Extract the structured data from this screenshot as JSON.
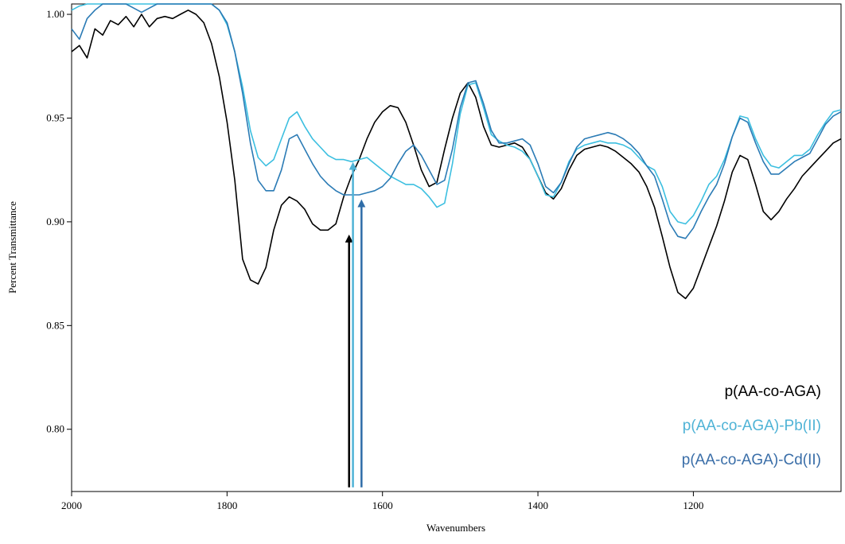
{
  "chart_data": {
    "type": "line",
    "title": "",
    "xlabel": "Wavenumbers",
    "ylabel": "Percent Transmittance",
    "xlim": [
      2000,
      1010
    ],
    "ylim": [
      0.77,
      1.005
    ],
    "x_reversed": true,
    "grid": false,
    "legend_placement": "bottom-right",
    "x_ticks": [
      2000,
      1800,
      1600,
      1400,
      1200
    ],
    "x_tick_labels": [
      "2000",
      "1800",
      "1600",
      "1400",
      "1200"
    ],
    "y_ticks": [
      1.0,
      0.95,
      0.9,
      0.85,
      0.8
    ],
    "y_tick_labels": [
      "1.00",
      "0.95",
      "0.90",
      "0.85",
      "0.80"
    ],
    "series": [
      {
        "name": "p(AA-co-AGA)",
        "color": "#000000",
        "x": [
          2000,
          1990,
          1980,
          1970,
          1960,
          1950,
          1940,
          1930,
          1920,
          1910,
          1900,
          1890,
          1880,
          1870,
          1860,
          1850,
          1840,
          1830,
          1820,
          1810,
          1800,
          1790,
          1780,
          1770,
          1760,
          1750,
          1740,
          1730,
          1720,
          1710,
          1700,
          1690,
          1680,
          1670,
          1660,
          1650,
          1640,
          1630,
          1620,
          1610,
          1600,
          1590,
          1580,
          1570,
          1560,
          1550,
          1540,
          1530,
          1520,
          1510,
          1500,
          1490,
          1480,
          1470,
          1460,
          1450,
          1440,
          1430,
          1420,
          1410,
          1400,
          1390,
          1380,
          1370,
          1360,
          1350,
          1340,
          1330,
          1320,
          1310,
          1300,
          1290,
          1280,
          1270,
          1260,
          1250,
          1240,
          1230,
          1220,
          1210,
          1200,
          1190,
          1180,
          1170,
          1160,
          1150,
          1140,
          1130,
          1120,
          1110,
          1100,
          1090,
          1080,
          1070,
          1060,
          1050,
          1040,
          1030,
          1020,
          1010
        ],
        "values": [
          0.982,
          0.985,
          0.979,
          0.993,
          0.99,
          0.997,
          0.995,
          0.999,
          0.994,
          1.0,
          0.994,
          0.998,
          0.999,
          0.998,
          1.0,
          1.002,
          1.0,
          0.996,
          0.986,
          0.97,
          0.948,
          0.92,
          0.882,
          0.872,
          0.87,
          0.878,
          0.896,
          0.908,
          0.912,
          0.91,
          0.906,
          0.899,
          0.896,
          0.896,
          0.899,
          0.912,
          0.922,
          0.93,
          0.94,
          0.948,
          0.953,
          0.956,
          0.955,
          0.948,
          0.937,
          0.925,
          0.917,
          0.919,
          0.935,
          0.95,
          0.962,
          0.967,
          0.96,
          0.946,
          0.937,
          0.936,
          0.937,
          0.938,
          0.936,
          0.93,
          0.922,
          0.914,
          0.911,
          0.916,
          0.925,
          0.932,
          0.935,
          0.936,
          0.937,
          0.936,
          0.934,
          0.931,
          0.928,
          0.924,
          0.917,
          0.907,
          0.893,
          0.878,
          0.866,
          0.863,
          0.868,
          0.878,
          0.888,
          0.898,
          0.91,
          0.924,
          0.932,
          0.93,
          0.918,
          0.905,
          0.901,
          0.905,
          0.911,
          0.916,
          0.922,
          0.926,
          0.93,
          0.934,
          0.938,
          0.94
        ]
      },
      {
        "name": "p(AA-co-AGA)-Pb(II)",
        "color": "#3cbfe0",
        "x": [
          2000,
          1990,
          1980,
          1970,
          1960,
          1950,
          1940,
          1930,
          1920,
          1910,
          1900,
          1890,
          1880,
          1870,
          1860,
          1850,
          1840,
          1830,
          1820,
          1810,
          1800,
          1790,
          1780,
          1770,
          1760,
          1750,
          1740,
          1730,
          1720,
          1710,
          1700,
          1690,
          1680,
          1670,
          1660,
          1650,
          1640,
          1630,
          1620,
          1610,
          1600,
          1590,
          1580,
          1570,
          1560,
          1550,
          1540,
          1530,
          1520,
          1510,
          1500,
          1490,
          1480,
          1470,
          1460,
          1450,
          1440,
          1430,
          1420,
          1410,
          1400,
          1390,
          1380,
          1370,
          1360,
          1350,
          1340,
          1330,
          1320,
          1310,
          1300,
          1290,
          1280,
          1270,
          1260,
          1250,
          1240,
          1230,
          1220,
          1210,
          1200,
          1190,
          1180,
          1170,
          1160,
          1150,
          1140,
          1130,
          1120,
          1110,
          1100,
          1090,
          1080,
          1070,
          1060,
          1050,
          1040,
          1030,
          1020,
          1010
        ],
        "values": [
          1.002,
          1.004,
          1.005,
          1.006,
          1.007,
          1.007,
          1.007,
          1.006,
          1.007,
          1.006,
          1.007,
          1.007,
          1.008,
          1.007,
          1.007,
          1.007,
          1.007,
          1.008,
          1.006,
          1.002,
          0.995,
          0.982,
          0.965,
          0.944,
          0.931,
          0.927,
          0.93,
          0.94,
          0.95,
          0.953,
          0.946,
          0.94,
          0.936,
          0.932,
          0.93,
          0.93,
          0.929,
          0.93,
          0.931,
          0.928,
          0.925,
          0.922,
          0.92,
          0.918,
          0.918,
          0.916,
          0.912,
          0.907,
          0.909,
          0.928,
          0.952,
          0.966,
          0.967,
          0.955,
          0.942,
          0.939,
          0.937,
          0.936,
          0.934,
          0.93,
          0.922,
          0.913,
          0.912,
          0.919,
          0.929,
          0.935,
          0.937,
          0.938,
          0.939,
          0.938,
          0.938,
          0.937,
          0.935,
          0.931,
          0.927,
          0.925,
          0.917,
          0.905,
          0.9,
          0.899,
          0.903,
          0.91,
          0.918,
          0.922,
          0.93,
          0.941,
          0.951,
          0.95,
          0.94,
          0.932,
          0.927,
          0.926,
          0.929,
          0.932,
          0.932,
          0.935,
          0.942,
          0.948,
          0.953,
          0.954
        ]
      },
      {
        "name": "p(AA-co-AGA)-Cd(II)",
        "color": "#2b7bb5",
        "x": [
          2000,
          1990,
          1980,
          1970,
          1960,
          1950,
          1940,
          1930,
          1920,
          1910,
          1900,
          1890,
          1880,
          1870,
          1860,
          1850,
          1840,
          1830,
          1820,
          1810,
          1800,
          1790,
          1780,
          1770,
          1760,
          1750,
          1740,
          1730,
          1720,
          1710,
          1700,
          1690,
          1680,
          1670,
          1660,
          1650,
          1640,
          1630,
          1620,
          1610,
          1600,
          1590,
          1580,
          1570,
          1560,
          1550,
          1540,
          1530,
          1520,
          1510,
          1500,
          1490,
          1480,
          1470,
          1460,
          1450,
          1440,
          1430,
          1420,
          1410,
          1400,
          1390,
          1380,
          1370,
          1360,
          1350,
          1340,
          1330,
          1320,
          1310,
          1300,
          1290,
          1280,
          1270,
          1260,
          1250,
          1240,
          1230,
          1220,
          1210,
          1200,
          1190,
          1180,
          1170,
          1160,
          1150,
          1140,
          1130,
          1120,
          1110,
          1100,
          1090,
          1080,
          1070,
          1060,
          1050,
          1040,
          1030,
          1020,
          1010
        ],
        "values": [
          0.993,
          0.988,
          0.998,
          1.002,
          1.005,
          1.006,
          1.006,
          1.005,
          1.003,
          1.001,
          1.003,
          1.007,
          1.007,
          1.007,
          1.007,
          1.007,
          1.007,
          1.007,
          1.005,
          1.002,
          0.996,
          0.982,
          0.962,
          0.938,
          0.92,
          0.915,
          0.915,
          0.925,
          0.94,
          0.942,
          0.935,
          0.928,
          0.922,
          0.918,
          0.915,
          0.913,
          0.913,
          0.913,
          0.914,
          0.915,
          0.917,
          0.921,
          0.928,
          0.934,
          0.937,
          0.932,
          0.925,
          0.918,
          0.92,
          0.935,
          0.955,
          0.967,
          0.968,
          0.957,
          0.944,
          0.938,
          0.938,
          0.939,
          0.94,
          0.937,
          0.928,
          0.917,
          0.914,
          0.919,
          0.928,
          0.936,
          0.94,
          0.941,
          0.942,
          0.943,
          0.942,
          0.94,
          0.937,
          0.933,
          0.927,
          0.922,
          0.911,
          0.899,
          0.893,
          0.892,
          0.897,
          0.905,
          0.912,
          0.918,
          0.928,
          0.941,
          0.95,
          0.948,
          0.938,
          0.929,
          0.923,
          0.923,
          0.926,
          0.929,
          0.931,
          0.933,
          0.94,
          0.947,
          0.951,
          0.953
        ]
      }
    ],
    "annotations": [
      {
        "type": "arrow",
        "x": 1643,
        "y_from": 0.772,
        "y_to": 0.895,
        "color": "#000000"
      },
      {
        "type": "arrow",
        "x": 1638,
        "y_from": 0.772,
        "y_to": 0.93,
        "color": "#4fb3d6"
      },
      {
        "type": "arrow",
        "x": 1627,
        "y_from": 0.772,
        "y_to": 0.912,
        "color": "#2f6da8"
      }
    ],
    "legend": [
      {
        "label": "p(AA-co-AGA)",
        "color": "#000000"
      },
      {
        "label": "p(AA-co-AGA)-Pb(II)",
        "color": "#4fb3d6"
      },
      {
        "label": "p(AA-co-AGA)-Cd(II)",
        "color": "#3a6ea8"
      }
    ]
  }
}
